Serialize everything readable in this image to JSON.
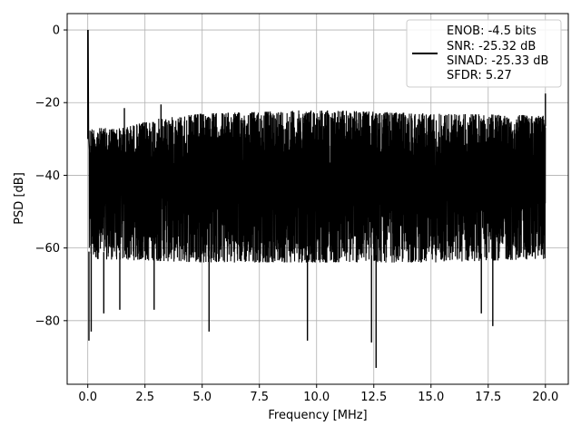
{
  "chart_data": {
    "type": "line",
    "title": "",
    "xlabel": "Frequency [MHz]",
    "ylabel": "PSD [dB]",
    "xlim": [
      -0.9,
      21.0
    ],
    "ylim": [
      -97.5,
      4.5
    ],
    "x_ticks": [
      0.0,
      2.5,
      5.0,
      7.5,
      10.0,
      12.5,
      15.0,
      17.5,
      20.0
    ],
    "x_tick_labels": [
      "0.0",
      "2.5",
      "5.0",
      "7.5",
      "10.0",
      "12.5",
      "15.0",
      "17.5",
      "20.0"
    ],
    "y_ticks": [
      0,
      -20,
      -40,
      -60,
      -80
    ],
    "y_tick_labels": [
      "0",
      "−20",
      "−40",
      "−60",
      "−80"
    ],
    "grid": true,
    "legend_placement": "top-right",
    "series": [
      {
        "color": "#000000",
        "x_range": [
          0,
          20
        ],
        "dense_band": {
          "upper_envelope": [
            [
              0.1,
              -27
            ],
            [
              1.5,
              -27
            ],
            [
              3.0,
              -24.5
            ],
            [
              5.0,
              -23
            ],
            [
              10.0,
              -22
            ],
            [
              15.0,
              -23
            ],
            [
              20.0,
              -23.5
            ]
          ],
          "lower_envelope": [
            [
              0.1,
              -63
            ],
            [
              5.0,
              -64
            ],
            [
              10.0,
              -64
            ],
            [
              15.0,
              -64
            ],
            [
              20.0,
              -63
            ]
          ],
          "center_db": -40
        },
        "peaks": [
          {
            "x": 0.0,
            "y": 0
          },
          {
            "x": 1.6,
            "y": -21.5
          },
          {
            "x": 3.2,
            "y": -20.5
          },
          {
            "x": 20.0,
            "y": -17.5
          }
        ],
        "dips": [
          {
            "x": 0.05,
            "y": -85.5
          },
          {
            "x": 0.15,
            "y": -83
          },
          {
            "x": 0.7,
            "y": -78
          },
          {
            "x": 1.4,
            "y": -77
          },
          {
            "x": 2.9,
            "y": -77
          },
          {
            "x": 5.3,
            "y": -83
          },
          {
            "x": 9.6,
            "y": -85.5
          },
          {
            "x": 12.4,
            "y": -86
          },
          {
            "x": 12.6,
            "y": -93
          },
          {
            "x": 17.7,
            "y": -81.5
          },
          {
            "x": 17.2,
            "y": -78
          }
        ]
      }
    ],
    "legend": {
      "entries": [
        "ENOB: -4.5 bits",
        "SNR: -25.32 dB",
        "SINAD: -25.33 dB",
        "SFDR: 5.27"
      ]
    }
  }
}
